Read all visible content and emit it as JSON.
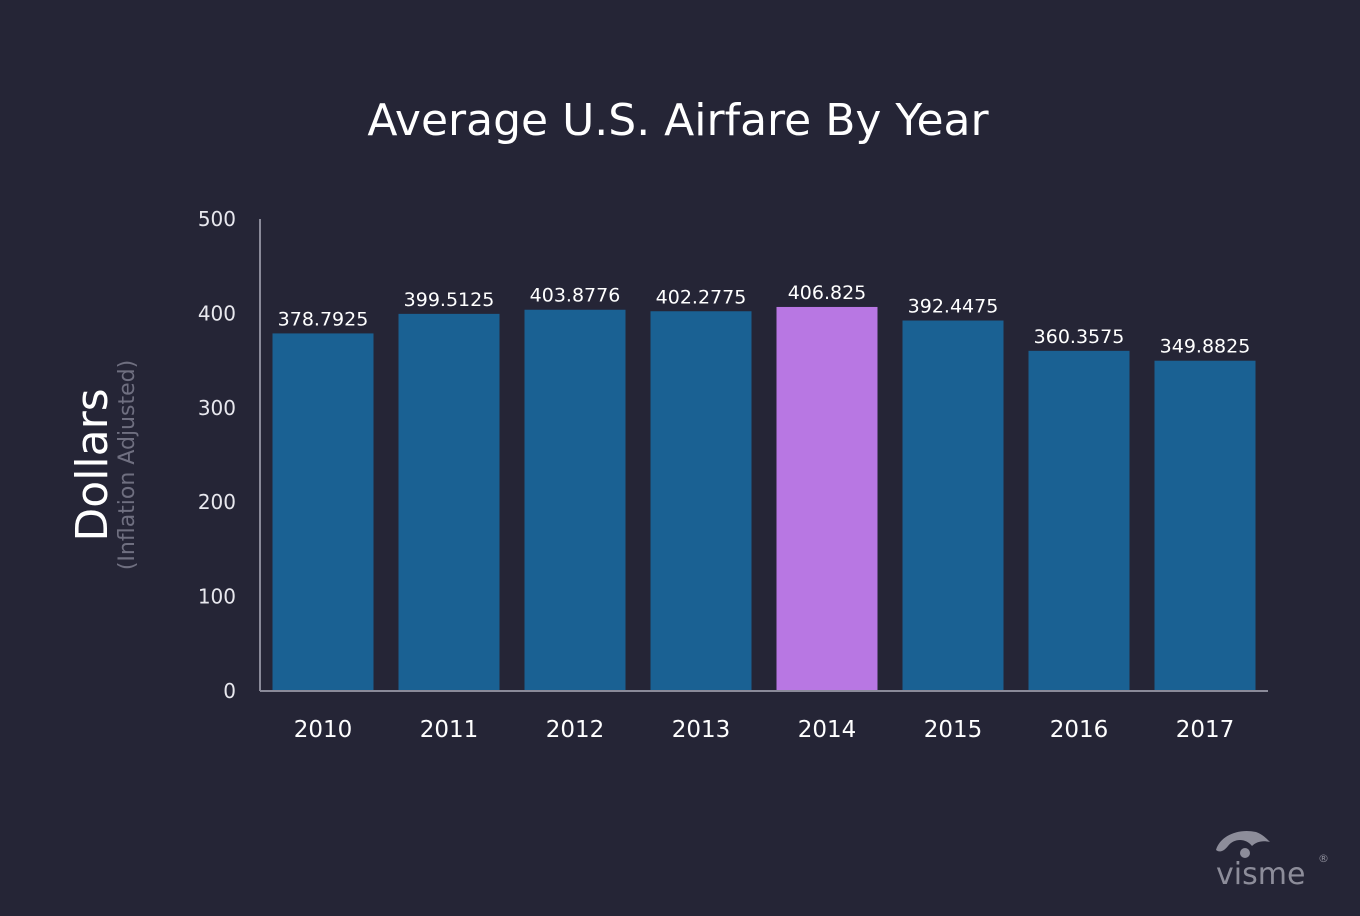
{
  "chart_data": {
    "type": "bar",
    "title": "Average U.S. Airfare By Year",
    "ylabel": "Dollars",
    "ylabel_sub": "(Inflation Adjusted)",
    "xlabel": "",
    "categories": [
      "2010",
      "2011",
      "2012",
      "2013",
      "2014",
      "2015",
      "2016",
      "2017"
    ],
    "values": [
      378.7925,
      399.5125,
      403.8776,
      402.2775,
      406.825,
      392.4475,
      360.3575,
      349.8825
    ],
    "value_labels": [
      "378.7925",
      "399.5125",
      "403.8776",
      "402.2775",
      "406.825",
      "392.4475",
      "360.3575",
      "349.8825"
    ],
    "ylim": [
      0,
      500
    ],
    "yticks": [
      0,
      100,
      200,
      300,
      400,
      500
    ],
    "highlight_category": "2014",
    "grid": false,
    "colors": {
      "background": "#252536",
      "bar": "#1a6193",
      "highlight": "#b877e3",
      "axis": "#8a8a99"
    }
  },
  "branding": {
    "logo_text": "visme",
    "logo_mark": "®"
  }
}
